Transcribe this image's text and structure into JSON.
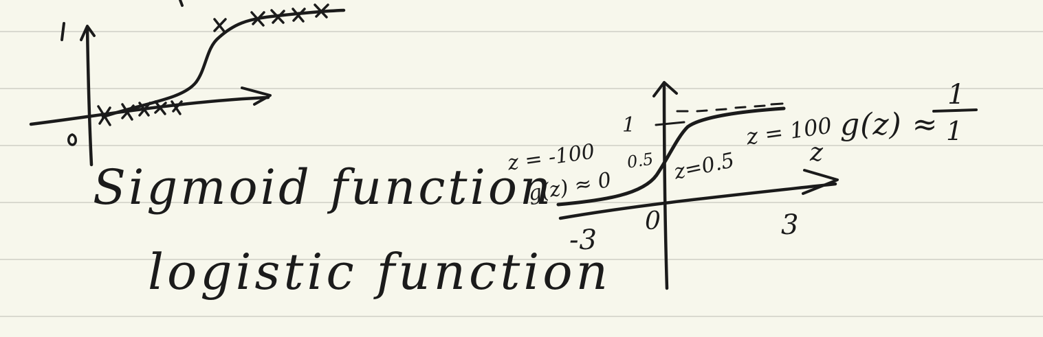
{
  "notes": {
    "heading_1": "Sigmoid function",
    "heading_2": "logistic function"
  },
  "left_sketch": {
    "y_tick": "1",
    "origin": "0",
    "data_marks": [
      "×",
      "×",
      "×",
      "×",
      "×",
      "×",
      "×",
      "×",
      "×",
      "×"
    ]
  },
  "right_sketch": {
    "y_tick": "1",
    "x_axis_label": "z",
    "tick_neg": "-3",
    "tick_zero": "0",
    "tick_pos": "3",
    "annot_neg_z": "z = -100",
    "annot_neg_g": "g(z) ≈ 0",
    "annot_mid": "0.5",
    "annot_mid_z": "z=0.5",
    "annot_pos_z": "z = 100",
    "annot_pos_g": "g(z) ≈",
    "fraction_num": "1",
    "fraction_den": "1"
  },
  "colors": {
    "paper": "#f7f7ec",
    "rule_line": "#d9d9cf",
    "ink": "#1b1b1b"
  }
}
